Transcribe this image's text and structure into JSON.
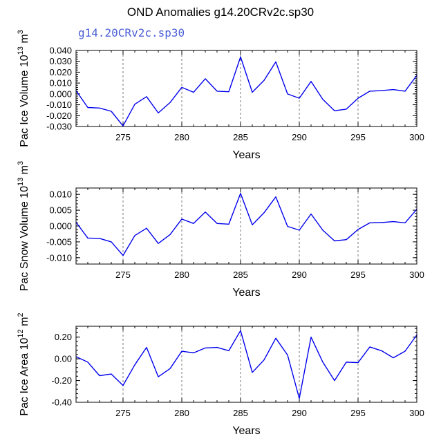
{
  "figure": {
    "title": "OND Anomalies g14.20CRv2c.sp30",
    "subtitle": "g14.20CRv2c.sp30"
  },
  "colors": {
    "series": "#0000ee",
    "grid": "#777777",
    "subtitle": "#4a5fd6"
  },
  "chart_data": [
    {
      "type": "line",
      "ylabel": "Pac Ice Volume 10",
      "ylabel_exp": "13",
      "ylabel_unit": " m",
      "ylabel_unit_exp": "3",
      "xlabel": "Years",
      "xlim": [
        271,
        300
      ],
      "ylim": [
        -0.03,
        0.04
      ],
      "yticks": [
        -0.03,
        -0.02,
        -0.01,
        0.0,
        0.01,
        0.02,
        0.03,
        0.04
      ],
      "ytick_labels": [
        "-0.030",
        "-0.020",
        "-0.010",
        "0.000",
        "0.010",
        "0.020",
        "0.030",
        "0.040"
      ],
      "xticks": [
        275,
        280,
        285,
        290,
        295,
        300
      ],
      "xtick_labels": [
        "275",
        "280",
        "285",
        "290",
        "295",
        "300"
      ],
      "vlines": [
        275,
        280,
        285,
        290,
        295
      ],
      "x": [
        271,
        272,
        273,
        274,
        275,
        276,
        277,
        278,
        279,
        280,
        281,
        282,
        283,
        284,
        285,
        286,
        287,
        288,
        289,
        290,
        291,
        292,
        293,
        294,
        295,
        296,
        297,
        298,
        299,
        300
      ],
      "values": [
        0.003,
        -0.0125,
        -0.013,
        -0.016,
        -0.0295,
        -0.0095,
        -0.0025,
        -0.0175,
        -0.008,
        0.006,
        0.0015,
        0.014,
        0.0025,
        0.002,
        0.034,
        0.0015,
        0.0125,
        0.0295,
        0.0,
        -0.004,
        0.0115,
        -0.005,
        -0.0155,
        -0.014,
        -0.004,
        0.0025,
        0.003,
        0.004,
        0.0025,
        0.017
      ]
    },
    {
      "type": "line",
      "ylabel": "Pac Snow Volume 10",
      "ylabel_exp": "13",
      "ylabel_unit": " m",
      "ylabel_unit_exp": "3",
      "xlabel": "Years",
      "xlim": [
        271,
        300
      ],
      "ylim": [
        -0.012,
        0.012
      ],
      "yticks": [
        -0.01,
        -0.005,
        0.0,
        0.005,
        0.01
      ],
      "ytick_labels": [
        "-0.010",
        "-0.005",
        "0.000",
        "0.005",
        "0.010"
      ],
      "xticks": [
        275,
        280,
        285,
        290,
        295,
        300
      ],
      "xtick_labels": [
        "275",
        "280",
        "285",
        "290",
        "295",
        "300"
      ],
      "vlines": [
        275,
        280,
        285,
        290,
        295
      ],
      "x": [
        271,
        272,
        273,
        274,
        275,
        276,
        277,
        278,
        279,
        280,
        281,
        282,
        283,
        284,
        285,
        286,
        287,
        288,
        289,
        290,
        291,
        292,
        293,
        294,
        295,
        296,
        297,
        298,
        299,
        300
      ],
      "values": [
        0.0012,
        -0.0038,
        -0.0039,
        -0.005,
        -0.0093,
        -0.003,
        -0.0007,
        -0.0055,
        -0.0027,
        0.0022,
        0.0008,
        0.0044,
        0.0008,
        0.0006,
        0.0103,
        0.0004,
        0.0042,
        0.0092,
        -0.0001,
        -0.0013,
        0.0038,
        -0.0013,
        -0.0047,
        -0.0043,
        -0.0011,
        0.001,
        0.0011,
        0.0014,
        0.001,
        0.0053
      ]
    },
    {
      "type": "line",
      "ylabel": "Pac Ice Area 10",
      "ylabel_exp": "12",
      "ylabel_unit": " m",
      "ylabel_unit_exp": "2",
      "xlabel": "Years",
      "xlim": [
        271,
        300
      ],
      "ylim": [
        -0.4,
        0.3
      ],
      "yticks": [
        -0.4,
        -0.2,
        0.0,
        0.2
      ],
      "ytick_labels": [
        "-0.40",
        "-0.20",
        "0.00",
        "0.20"
      ],
      "xticks": [
        275,
        280,
        285,
        290,
        295,
        300
      ],
      "xtick_labels": [
        "275",
        "280",
        "285",
        "290",
        "295",
        "300"
      ],
      "vlines": [
        275,
        280,
        285,
        290,
        295
      ],
      "x": [
        271,
        272,
        273,
        274,
        275,
        276,
        277,
        278,
        279,
        280,
        281,
        282,
        283,
        284,
        285,
        286,
        287,
        288,
        289,
        290,
        291,
        292,
        293,
        294,
        295,
        296,
        297,
        298,
        299,
        300
      ],
      "values": [
        0.02,
        -0.03,
        -0.155,
        -0.14,
        -0.245,
        -0.055,
        0.105,
        -0.165,
        -0.09,
        0.07,
        0.055,
        0.1,
        0.105,
        0.075,
        0.26,
        -0.125,
        -0.01,
        0.19,
        0.035,
        -0.365,
        0.2,
        -0.03,
        -0.2,
        -0.03,
        -0.035,
        0.11,
        0.075,
        0.01,
        0.07,
        0.22
      ]
    }
  ]
}
